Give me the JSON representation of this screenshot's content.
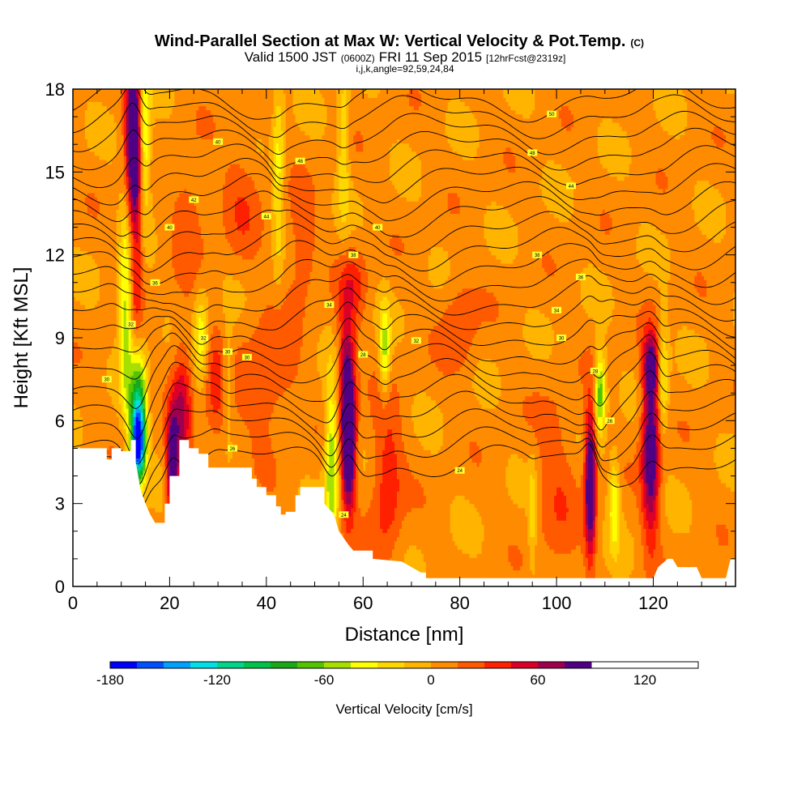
{
  "header": {
    "title": "Wind-Parallel Section at Max W: Vertical Velocity & Pot.Temp.",
    "title_mark": "(C)",
    "subtitle_valid": "Valid 1500 JST",
    "subtitle_zulu": "(0600Z)",
    "subtitle_date": "FRI 11 Sep 2015",
    "subtitle_fcst": "[12hrFcst@2319z]",
    "indices": "i,j,k,angle=92,59,24,84"
  },
  "chart_data": {
    "type": "heatmap",
    "xlabel": "Distance [nm]",
    "ylabel": "Height [Kft MSL]",
    "xlim": [
      0,
      137
    ],
    "ylim": [
      0,
      18
    ],
    "x_ticks": [
      0,
      20,
      40,
      60,
      80,
      100,
      120
    ],
    "y_ticks": [
      0,
      3,
      6,
      9,
      12,
      15,
      18
    ],
    "grid": false,
    "background_value": 5,
    "terrain": [
      [
        0,
        5.0
      ],
      [
        7,
        5.0
      ],
      [
        7,
        4.6
      ],
      [
        8,
        4.6
      ],
      [
        8,
        5.0
      ],
      [
        10,
        5.0
      ],
      [
        10,
        4.9
      ],
      [
        12,
        4.9
      ],
      [
        12,
        5.3
      ],
      [
        13,
        5.3
      ],
      [
        13,
        4.5
      ],
      [
        14,
        3.5
      ],
      [
        15,
        3.0
      ],
      [
        16,
        2.6
      ],
      [
        17,
        2.3
      ],
      [
        19,
        2.3
      ],
      [
        19,
        3.0
      ],
      [
        20,
        3.0
      ],
      [
        20,
        4.0
      ],
      [
        22,
        4.0
      ],
      [
        22,
        5.3
      ],
      [
        24,
        5.3
      ],
      [
        24,
        5.0
      ],
      [
        26,
        5.0
      ],
      [
        26,
        4.8
      ],
      [
        28,
        4.8
      ],
      [
        28,
        4.3
      ],
      [
        37,
        4.3
      ],
      [
        37,
        3.9
      ],
      [
        38,
        3.9
      ],
      [
        38,
        3.6
      ],
      [
        40,
        3.6
      ],
      [
        40,
        3.3
      ],
      [
        42,
        3.3
      ],
      [
        42,
        2.9
      ],
      [
        43,
        2.9
      ],
      [
        43,
        2.6
      ],
      [
        44,
        2.6
      ],
      [
        44,
        2.7
      ],
      [
        46,
        2.7
      ],
      [
        46,
        3.3
      ],
      [
        47,
        3.3
      ],
      [
        47,
        3.6
      ],
      [
        52,
        3.6
      ],
      [
        52,
        3.0
      ],
      [
        54,
        2.6
      ],
      [
        55,
        2.0
      ],
      [
        57,
        1.5
      ],
      [
        58,
        1.3
      ],
      [
        62,
        1.3
      ],
      [
        62,
        1.0
      ],
      [
        68,
        0.9
      ],
      [
        70,
        0.7
      ],
      [
        72,
        0.5
      ],
      [
        73,
        0.5
      ],
      [
        73,
        0.3
      ],
      [
        120,
        0.3
      ],
      [
        121,
        0.7
      ],
      [
        123,
        1.0
      ],
      [
        124,
        1.0
      ],
      [
        125,
        0.7
      ],
      [
        129,
        0.7
      ],
      [
        130,
        0.3
      ],
      [
        135,
        0.3
      ],
      [
        136,
        1.0
      ],
      [
        137,
        1.0
      ]
    ],
    "updrafts": [
      {
        "x": 12.5,
        "y": 16.5,
        "sx": 1.1,
        "sy": 2.0,
        "v": 110
      },
      {
        "x": 13.0,
        "y": 12.5,
        "sx": 1.0,
        "sy": 2.8,
        "v": 45
      },
      {
        "x": 20.5,
        "y": 4.3,
        "sx": 0.8,
        "sy": 1.3,
        "v": 100
      },
      {
        "x": 22.5,
        "y": 6.3,
        "sx": 1.4,
        "sy": 1.8,
        "v": 55
      },
      {
        "x": 30.0,
        "y": 7.0,
        "sx": 2.0,
        "sy": 1.5,
        "v": 35
      },
      {
        "x": 40.0,
        "y": 7.5,
        "sx": 4.0,
        "sy": 1.5,
        "v": 28
      },
      {
        "x": 57.0,
        "y": 5.3,
        "sx": 1.0,
        "sy": 1.7,
        "v": 130
      },
      {
        "x": 56.5,
        "y": 8.0,
        "sx": 1.2,
        "sy": 1.5,
        "v": 55
      },
      {
        "x": 65.0,
        "y": 3.8,
        "sx": 2.2,
        "sy": 2.0,
        "v": 38
      },
      {
        "x": 58.0,
        "y": 11.0,
        "sx": 2.0,
        "sy": 1.0,
        "v": 30
      },
      {
        "x": 80.0,
        "y": 9.5,
        "sx": 2.5,
        "sy": 1.2,
        "v": 25
      },
      {
        "x": 107.0,
        "y": 3.8,
        "sx": 0.8,
        "sy": 1.8,
        "v": 110
      },
      {
        "x": 119.5,
        "y": 5.0,
        "sx": 1.3,
        "sy": 2.2,
        "v": 95
      },
      {
        "x": 119.5,
        "y": 8.0,
        "sx": 1.1,
        "sy": 0.8,
        "v": 60
      },
      {
        "x": 24.0,
        "y": 13.5,
        "sx": 2.5,
        "sy": 1.5,
        "v": 22
      },
      {
        "x": 35.0,
        "y": 14.0,
        "sx": 3.0,
        "sy": 1.5,
        "v": 20
      },
      {
        "x": 47.0,
        "y": 12.0,
        "sx": 2.5,
        "sy": 1.5,
        "v": 22
      },
      {
        "x": 100.0,
        "y": 3.5,
        "sx": 3.0,
        "sy": 2.5,
        "v": 20
      }
    ],
    "downdrafts": [
      {
        "x": 13.5,
        "y": 6.5,
        "sx": 1.2,
        "sy": 1.5,
        "v": -100
      },
      {
        "x": 13.5,
        "y": 5.1,
        "sx": 1.0,
        "sy": 0.9,
        "v": -140
      },
      {
        "x": 11.0,
        "y": 10.0,
        "sx": 1.0,
        "sy": 2.5,
        "v": -65
      },
      {
        "x": 14.8,
        "y": 16.2,
        "sx": 0.9,
        "sy": 1.8,
        "v": -65
      },
      {
        "x": 26.5,
        "y": 9.0,
        "sx": 1.0,
        "sy": 1.2,
        "v": -45
      },
      {
        "x": 32.0,
        "y": 7.5,
        "sx": 1.0,
        "sy": 1.3,
        "v": -40
      },
      {
        "x": 42.5,
        "y": 15.0,
        "sx": 0.8,
        "sy": 2.5,
        "v": -40
      },
      {
        "x": 53.5,
        "y": 4.5,
        "sx": 1.0,
        "sy": 2.0,
        "v": -70
      },
      {
        "x": 56.0,
        "y": 16.0,
        "sx": 0.8,
        "sy": 2.0,
        "v": -35
      },
      {
        "x": 64.5,
        "y": 8.5,
        "sx": 0.8,
        "sy": 1.2,
        "v": -55
      },
      {
        "x": 109.0,
        "y": 7.0,
        "sx": 0.8,
        "sy": 1.0,
        "v": -80
      },
      {
        "x": 112.0,
        "y": 3.0,
        "sx": 0.8,
        "sy": 1.2,
        "v": -50
      },
      {
        "x": 122.0,
        "y": 7.5,
        "sx": 0.8,
        "sy": 1.5,
        "v": -45
      },
      {
        "x": 95.0,
        "y": 2.5,
        "sx": 0.6,
        "sy": 1.5,
        "v": -30
      }
    ],
    "colorscale": {
      "min": -180,
      "max": 150,
      "step": 15,
      "colors": [
        "#0000ff",
        "#0050ff",
        "#00a0ff",
        "#00e0e6",
        "#00d58a",
        "#00c24a",
        "#1aa81a",
        "#55c400",
        "#a6e000",
        "#ffff00",
        "#ffd700",
        "#ffb400",
        "#ff8c00",
        "#ff5a00",
        "#ff2000",
        "#dc0028",
        "#a0004b",
        "#500082"
      ],
      "tick_values": [
        -180,
        -120,
        -60,
        0,
        60,
        120
      ],
      "tick_labels": [
        "-180",
        "-120",
        "-60",
        "0",
        "60",
        "120"
      ],
      "label": "Vertical Velocity [cm/s]"
    },
    "contour_labels": [
      {
        "x": 40,
        "y": 13.4,
        "text": "44"
      },
      {
        "x": 47,
        "y": 15.4,
        "text": "46"
      },
      {
        "x": 99,
        "y": 17.1,
        "text": "50"
      },
      {
        "x": 95,
        "y": 15.7,
        "text": "48"
      },
      {
        "x": 103,
        "y": 14.5,
        "text": "44"
      },
      {
        "x": 25,
        "y": 14.0,
        "text": "42"
      },
      {
        "x": 20,
        "y": 13.0,
        "text": "40"
      },
      {
        "x": 30,
        "y": 16.1,
        "text": "40"
      },
      {
        "x": 63,
        "y": 13.0,
        "text": "40"
      },
      {
        "x": 58,
        "y": 12.0,
        "text": "38"
      },
      {
        "x": 96,
        "y": 12.0,
        "text": "38"
      },
      {
        "x": 105,
        "y": 11.2,
        "text": "36"
      },
      {
        "x": 17,
        "y": 11.0,
        "text": "36"
      },
      {
        "x": 53,
        "y": 10.2,
        "text": "34"
      },
      {
        "x": 100,
        "y": 10.0,
        "text": "34"
      },
      {
        "x": 12,
        "y": 9.5,
        "text": "32"
      },
      {
        "x": 27,
        "y": 9.0,
        "text": "32"
      },
      {
        "x": 71,
        "y": 8.9,
        "text": "32"
      },
      {
        "x": 32,
        "y": 8.5,
        "text": "30"
      },
      {
        "x": 101,
        "y": 9.0,
        "text": "30"
      },
      {
        "x": 36,
        "y": 8.3,
        "text": "30"
      },
      {
        "x": 7,
        "y": 7.5,
        "text": "30"
      },
      {
        "x": 60,
        "y": 8.4,
        "text": "28"
      },
      {
        "x": 108,
        "y": 7.8,
        "text": "28"
      },
      {
        "x": 111,
        "y": 6.0,
        "text": "26"
      },
      {
        "x": 33,
        "y": 5.0,
        "text": "26"
      },
      {
        "x": 80,
        "y": 4.2,
        "text": "24"
      },
      {
        "x": 56,
        "y": 2.6,
        "text": "24"
      }
    ]
  }
}
